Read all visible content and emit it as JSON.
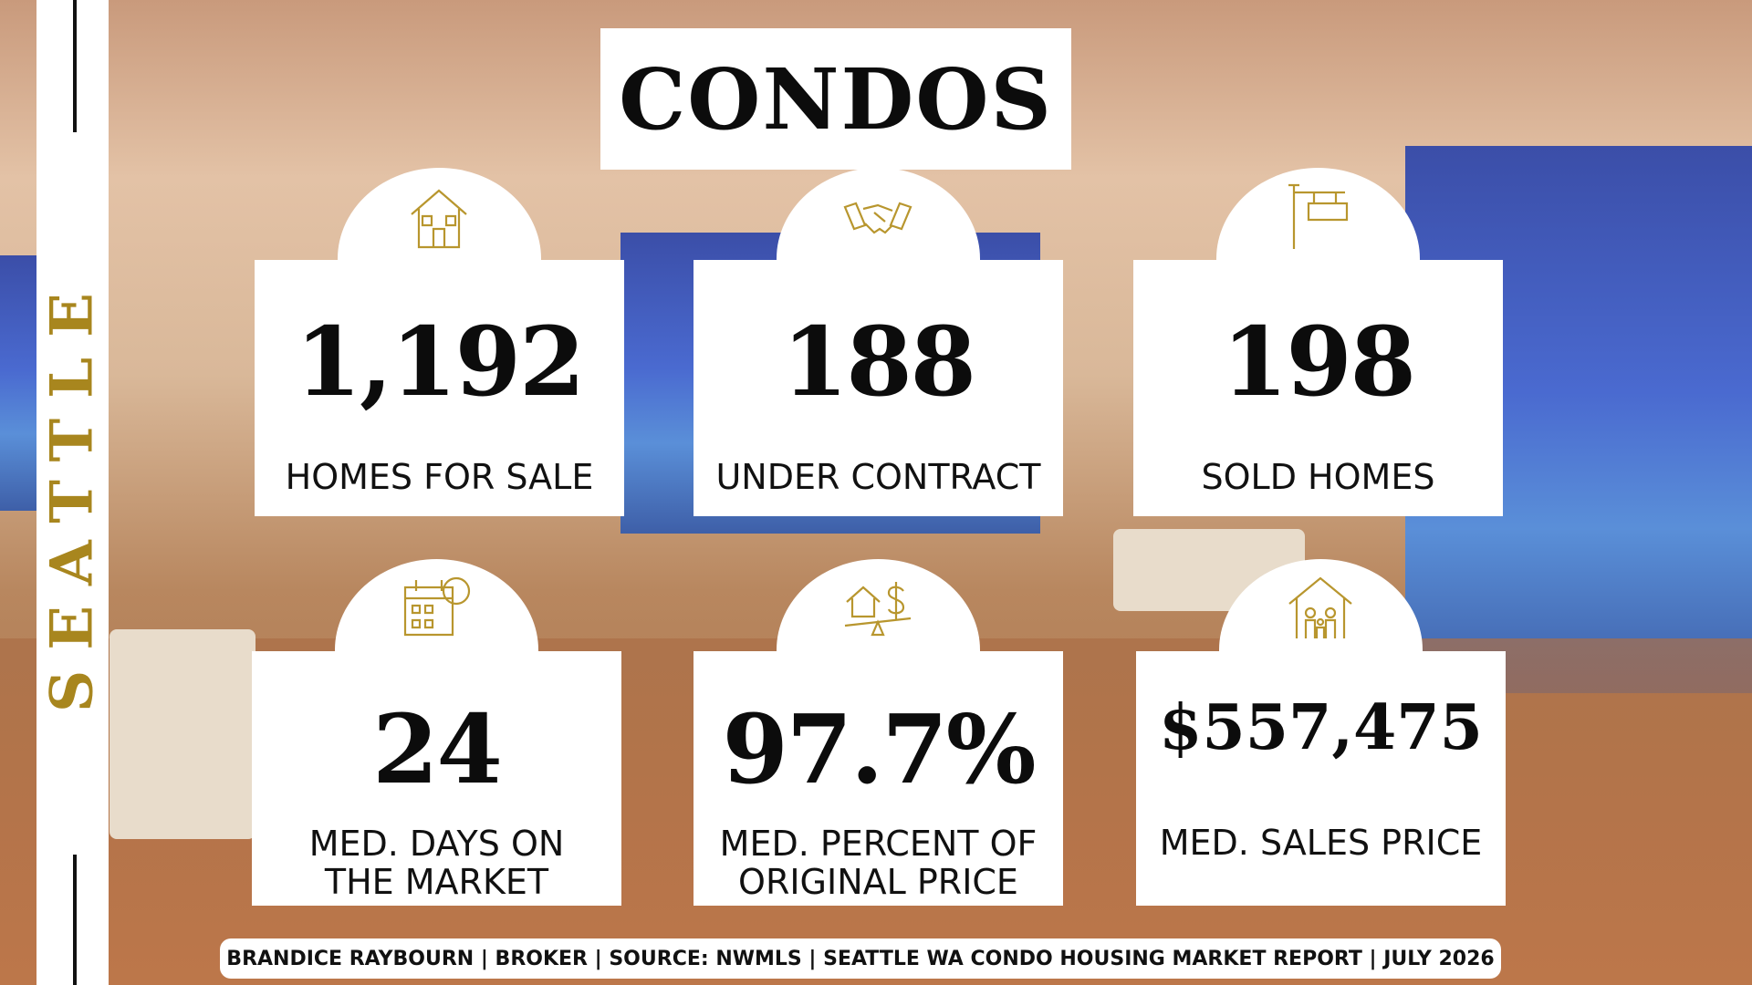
{
  "sidebar": "SEATTLE",
  "title": "CONDOS",
  "cards": [
    {
      "value": "1,192",
      "label": [
        "HOMES FOR SALE"
      ]
    },
    {
      "value": "188",
      "label": [
        "UNDER CONTRACT"
      ]
    },
    {
      "value": "198",
      "label": [
        "SOLD HOMES"
      ]
    },
    {
      "value": "24",
      "label": [
        "MED. DAYS ON",
        "THE MARKET"
      ]
    },
    {
      "value": "97.7%",
      "label": [
        "MED. PERCENT OF",
        "ORIGINAL PRICE"
      ]
    },
    {
      "value": "$557,475",
      "label": [
        "MED. SALES PRICE"
      ]
    }
  ],
  "footer": "BRANDICE RAYBOURN | BROKER | SOURCE: NWMLS | SEATTLE WA CONDO HOUSING MARKET REPORT | JULY 2026"
}
